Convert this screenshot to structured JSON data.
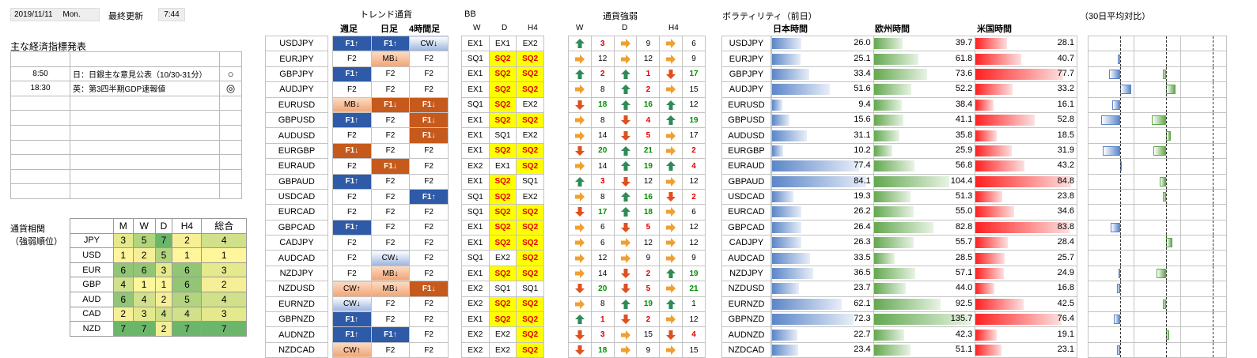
{
  "header": {
    "date": "2019/11/11",
    "day": "Mon.",
    "updated_label": "最終更新",
    "time": "7:44"
  },
  "econ": {
    "title": "主な経済指標発表",
    "rows": [
      {
        "time": "",
        "event": "",
        "mark": ""
      },
      {
        "time": "8:50",
        "event": "日：日銀主な意見公表（10/30-31分）",
        "mark": "○"
      },
      {
        "time": "18:30",
        "event": "英：第3四半期GDP速報値",
        "mark": "◎"
      },
      {
        "time": "",
        "event": "",
        "mark": ""
      },
      {
        "time": "",
        "event": "",
        "mark": ""
      },
      {
        "time": "",
        "event": "",
        "mark": ""
      },
      {
        "time": "",
        "event": "",
        "mark": ""
      },
      {
        "time": "",
        "event": "",
        "mark": ""
      },
      {
        "time": "",
        "event": "",
        "mark": ""
      },
      {
        "time": "",
        "event": "",
        "mark": ""
      }
    ]
  },
  "corr": {
    "title1": "通貨相関",
    "title2": "（強弱順位）",
    "headers": [
      "M",
      "W",
      "D",
      "H4",
      "総合"
    ],
    "rows": [
      {
        "cur": "JPY",
        "v": [
          3,
          5,
          7,
          2,
          4
        ]
      },
      {
        "cur": "USD",
        "v": [
          1,
          2,
          5,
          1,
          1
        ]
      },
      {
        "cur": "EUR",
        "v": [
          6,
          6,
          3,
          6,
          3
        ]
      },
      {
        "cur": "GBP",
        "v": [
          4,
          1,
          1,
          6,
          2
        ]
      },
      {
        "cur": "AUD",
        "v": [
          6,
          4,
          2,
          5,
          4
        ]
      },
      {
        "cur": "CAD",
        "v": [
          2,
          3,
          4,
          4,
          3
        ]
      },
      {
        "cur": "NZD",
        "v": [
          7,
          7,
          2,
          7,
          7
        ]
      }
    ]
  },
  "labels": {
    "trend": "トレンド通貨",
    "weekly": "週足",
    "daily": "日足",
    "h4": "4時間足",
    "bb": "BB",
    "bb_w": "W",
    "bb_d": "D",
    "bb_h4": "H4",
    "strength": "通貨強弱",
    "s_w": "W",
    "s_d": "D",
    "s_h4": "H4",
    "volatility": "ボラティリティ（前日）",
    "vs30": "（30日平均対比）",
    "tokyo": "日本時間",
    "europe": "欧州時間",
    "us": "米国時間"
  },
  "pairs": [
    {
      "name": "USDJPY",
      "t": [
        "F1↑",
        "F1↑",
        "CW↓"
      ],
      "bb": [
        "EX1",
        "EX1",
        "EX2"
      ],
      "s": [
        [
          "g",
          3,
          "r"
        ],
        [
          "o",
          9,
          ""
        ],
        [
          "o",
          6,
          ""
        ]
      ],
      "vol": [
        26.0,
        39.7,
        28.1
      ],
      "rel": [
        0,
        0,
        0
      ]
    },
    {
      "name": "EURJPY",
      "t": [
        "F2",
        "MB↓",
        "F2"
      ],
      "bb": [
        "SQ1",
        "SQ2",
        "SQ2"
      ],
      "s": [
        [
          "o",
          12,
          ""
        ],
        [
          "o",
          12,
          ""
        ],
        [
          "o",
          9,
          ""
        ]
      ],
      "vol": [
        25.1,
        61.8,
        40.7
      ],
      "rel": [
        -0.08,
        0,
        0
      ]
    },
    {
      "name": "GBPJPY",
      "t": [
        "F1↑",
        "F2",
        "F2"
      ],
      "bb": [
        "EX1",
        "SQ2",
        "SQ2"
      ],
      "s": [
        [
          "g",
          2,
          "r"
        ],
        [
          "g",
          1,
          "r"
        ],
        [
          "r",
          17,
          "g"
        ]
      ],
      "vol": [
        33.4,
        73.6,
        77.7
      ],
      "rel": [
        -0.35,
        -0.1,
        0
      ]
    },
    {
      "name": "AUDJPY",
      "t": [
        "F2",
        "F2",
        "F2"
      ],
      "bb": [
        "EX1",
        "SQ2",
        "SQ2"
      ],
      "s": [
        [
          "o",
          8,
          ""
        ],
        [
          "g",
          2,
          "r"
        ],
        [
          "o",
          15,
          ""
        ]
      ],
      "vol": [
        51.6,
        52.2,
        33.2
      ],
      "rel": [
        0.35,
        0.3,
        0
      ]
    },
    {
      "name": "EURUSD",
      "t": [
        "MB↓",
        "F1↓",
        "F1↓"
      ],
      "bb": [
        "SQ1",
        "SQ2",
        "EX2"
      ],
      "s": [
        [
          "r",
          18,
          "g"
        ],
        [
          "g",
          16,
          "g"
        ],
        [
          "g",
          12,
          ""
        ]
      ],
      "vol": [
        9.4,
        38.4,
        16.1
      ],
      "rel": [
        -0.25,
        0,
        0
      ]
    },
    {
      "name": "GBPUSD",
      "t": [
        "F1↑",
        "F2",
        "F1↓"
      ],
      "bb": [
        "EX1",
        "SQ2",
        "SQ2"
      ],
      "s": [
        [
          "o",
          8,
          ""
        ],
        [
          "r",
          4,
          "r"
        ],
        [
          "g",
          19,
          "g"
        ]
      ],
      "vol": [
        15.6,
        41.1,
        52.8
      ],
      "rel": [
        -0.6,
        -0.45,
        0
      ]
    },
    {
      "name": "AUDUSD",
      "t": [
        "F2",
        "F2",
        "F1↓"
      ],
      "bb": [
        "EX1",
        "SQ1",
        "EX2"
      ],
      "s": [
        [
          "o",
          14,
          ""
        ],
        [
          "r",
          5,
          "r"
        ],
        [
          "o",
          17,
          ""
        ]
      ],
      "vol": [
        31.1,
        35.8,
        18.5
      ],
      "rel": [
        0,
        0.15,
        0
      ]
    },
    {
      "name": "EURGBP",
      "t": [
        "F1↓",
        "F2",
        "F2"
      ],
      "bb": [
        "EX1",
        "SQ2",
        "SQ2"
      ],
      "s": [
        [
          "r",
          20,
          "g"
        ],
        [
          "g",
          21,
          "g"
        ],
        [
          "o",
          2,
          "r"
        ]
      ],
      "vol": [
        10.2,
        25.9,
        31.9
      ],
      "rel": [
        -0.55,
        -0.4,
        0
      ]
    },
    {
      "name": "EURAUD",
      "t": [
        "F2",
        "F1↓",
        "F2"
      ],
      "bb": [
        "EX2",
        "EX1",
        "SQ2"
      ],
      "s": [
        [
          "o",
          14,
          ""
        ],
        [
          "g",
          19,
          "g"
        ],
        [
          "g",
          4,
          "r"
        ]
      ],
      "vol": [
        77.4,
        56.8,
        43.2
      ],
      "rel": [
        0.05,
        0,
        0
      ]
    },
    {
      "name": "GBPAUD",
      "t": [
        "F1↑",
        "F2",
        "F2"
      ],
      "bb": [
        "EX1",
        "SQ2",
        "SQ1"
      ],
      "s": [
        [
          "g",
          3,
          "r"
        ],
        [
          "r",
          12,
          ""
        ],
        [
          "o",
          12,
          ""
        ]
      ],
      "vol": [
        84.1,
        104.4,
        84.8
      ],
      "rel": [
        0,
        -0.2,
        0
      ]
    },
    {
      "name": "USDCAD",
      "t": [
        "F2",
        "F2",
        "F1↑"
      ],
      "bb": [
        "SQ1",
        "SQ2",
        "EX2"
      ],
      "s": [
        [
          "o",
          8,
          ""
        ],
        [
          "g",
          16,
          "g"
        ],
        [
          "r",
          2,
          "r"
        ]
      ],
      "vol": [
        19.3,
        51.3,
        23.8
      ],
      "rel": [
        0,
        -0.1,
        0
      ]
    },
    {
      "name": "EURCAD",
      "t": [
        "F2",
        "F2",
        "F2"
      ],
      "bb": [
        "SQ1",
        "SQ2",
        "SQ2"
      ],
      "s": [
        [
          "r",
          17,
          "g"
        ],
        [
          "g",
          18,
          "g"
        ],
        [
          "o",
          6,
          ""
        ]
      ],
      "vol": [
        26.2,
        55.0,
        34.6
      ],
      "rel": [
        0,
        0,
        0
      ]
    },
    {
      "name": "GBPCAD",
      "t": [
        "F1↑",
        "F2",
        "F2"
      ],
      "bb": [
        "EX1",
        "SQ2",
        "SQ2"
      ],
      "s": [
        [
          "o",
          6,
          ""
        ],
        [
          "r",
          5,
          "r"
        ],
        [
          "o",
          12,
          ""
        ]
      ],
      "vol": [
        26.4,
        82.8,
        83.8
      ],
      "rel": [
        -0.3,
        0,
        0
      ]
    },
    {
      "name": "CADJPY",
      "t": [
        "F2",
        "F2",
        "F2"
      ],
      "bb": [
        "EX1",
        "SQ2",
        "SQ2"
      ],
      "s": [
        [
          "o",
          6,
          ""
        ],
        [
          "o",
          12,
          ""
        ],
        [
          "o",
          12,
          ""
        ]
      ],
      "vol": [
        26.3,
        55.7,
        28.4
      ],
      "rel": [
        0,
        0.2,
        0
      ]
    },
    {
      "name": "AUDCAD",
      "t": [
        "F2",
        "CW↓",
        "F2"
      ],
      "bb": [
        "SQ1",
        "EX2",
        "SQ2"
      ],
      "s": [
        [
          "o",
          12,
          ""
        ],
        [
          "o",
          9,
          ""
        ],
        [
          "o",
          9,
          ""
        ]
      ],
      "vol": [
        33.5,
        28.5,
        25.7
      ],
      "rel": [
        0,
        0,
        0
      ]
    },
    {
      "name": "NZDJPY",
      "t": [
        "F2",
        "MB↓",
        "F2"
      ],
      "bb": [
        "EX1",
        "SQ2",
        "SQ2"
      ],
      "s": [
        [
          "o",
          14,
          ""
        ],
        [
          "r",
          2,
          "r"
        ],
        [
          "g",
          19,
          "g"
        ]
      ],
      "vol": [
        36.5,
        57.1,
        24.9
      ],
      "rel": [
        -0.05,
        -0.3,
        0
      ]
    },
    {
      "name": "NZDUSD",
      "t": [
        "CW↑",
        "MB↓",
        "F1↓"
      ],
      "bb": [
        "EX2",
        "SQ1",
        "SQ1"
      ],
      "s": [
        [
          "r",
          20,
          "g"
        ],
        [
          "r",
          5,
          "r"
        ],
        [
          "o",
          21,
          "g"
        ]
      ],
      "vol": [
        23.7,
        44.0,
        16.8
      ],
      "rel": [
        -0.1,
        0,
        0
      ]
    },
    {
      "name": "EURNZD",
      "t": [
        "CW↓",
        "F2",
        "F2"
      ],
      "bb": [
        "EX2",
        "SQ2",
        "SQ2"
      ],
      "s": [
        [
          "o",
          8,
          ""
        ],
        [
          "g",
          19,
          "g"
        ],
        [
          "g",
          1,
          ""
        ]
      ],
      "vol": [
        62.1,
        92.5,
        42.5
      ],
      "rel": [
        0,
        -0.1,
        0
      ]
    },
    {
      "name": "GBPNZD",
      "t": [
        "F1↑",
        "F2",
        "F2"
      ],
      "bb": [
        "EX1",
        "SQ2",
        "SQ2"
      ],
      "s": [
        [
          "g",
          1,
          "r"
        ],
        [
          "r",
          2,
          "r"
        ],
        [
          "o",
          12,
          ""
        ]
      ],
      "vol": [
        72.3,
        135.7,
        76.4
      ],
      "rel": [
        -0.2,
        0,
        0
      ]
    },
    {
      "name": "AUDNZD",
      "t": [
        "F1↑",
        "F1↑",
        "F2"
      ],
      "bb": [
        "EX2",
        "EX2",
        "SQ2"
      ],
      "s": [
        [
          "r",
          3,
          "r"
        ],
        [
          "o",
          15,
          ""
        ],
        [
          "r",
          4,
          "r"
        ]
      ],
      "vol": [
        22.7,
        42.3,
        19.1
      ],
      "rel": [
        0,
        0.1,
        0
      ]
    },
    {
      "name": "NZDCAD",
      "t": [
        "CW↑",
        "F2",
        "F2"
      ],
      "bb": [
        "EX2",
        "EX2",
        "SQ2"
      ],
      "s": [
        [
          "r",
          18,
          "g"
        ],
        [
          "o",
          9,
          ""
        ],
        [
          "o",
          15,
          ""
        ]
      ],
      "vol": [
        23.4,
        51.1,
        23.1
      ],
      "rel": [
        -0.1,
        0,
        0
      ]
    }
  ]
}
